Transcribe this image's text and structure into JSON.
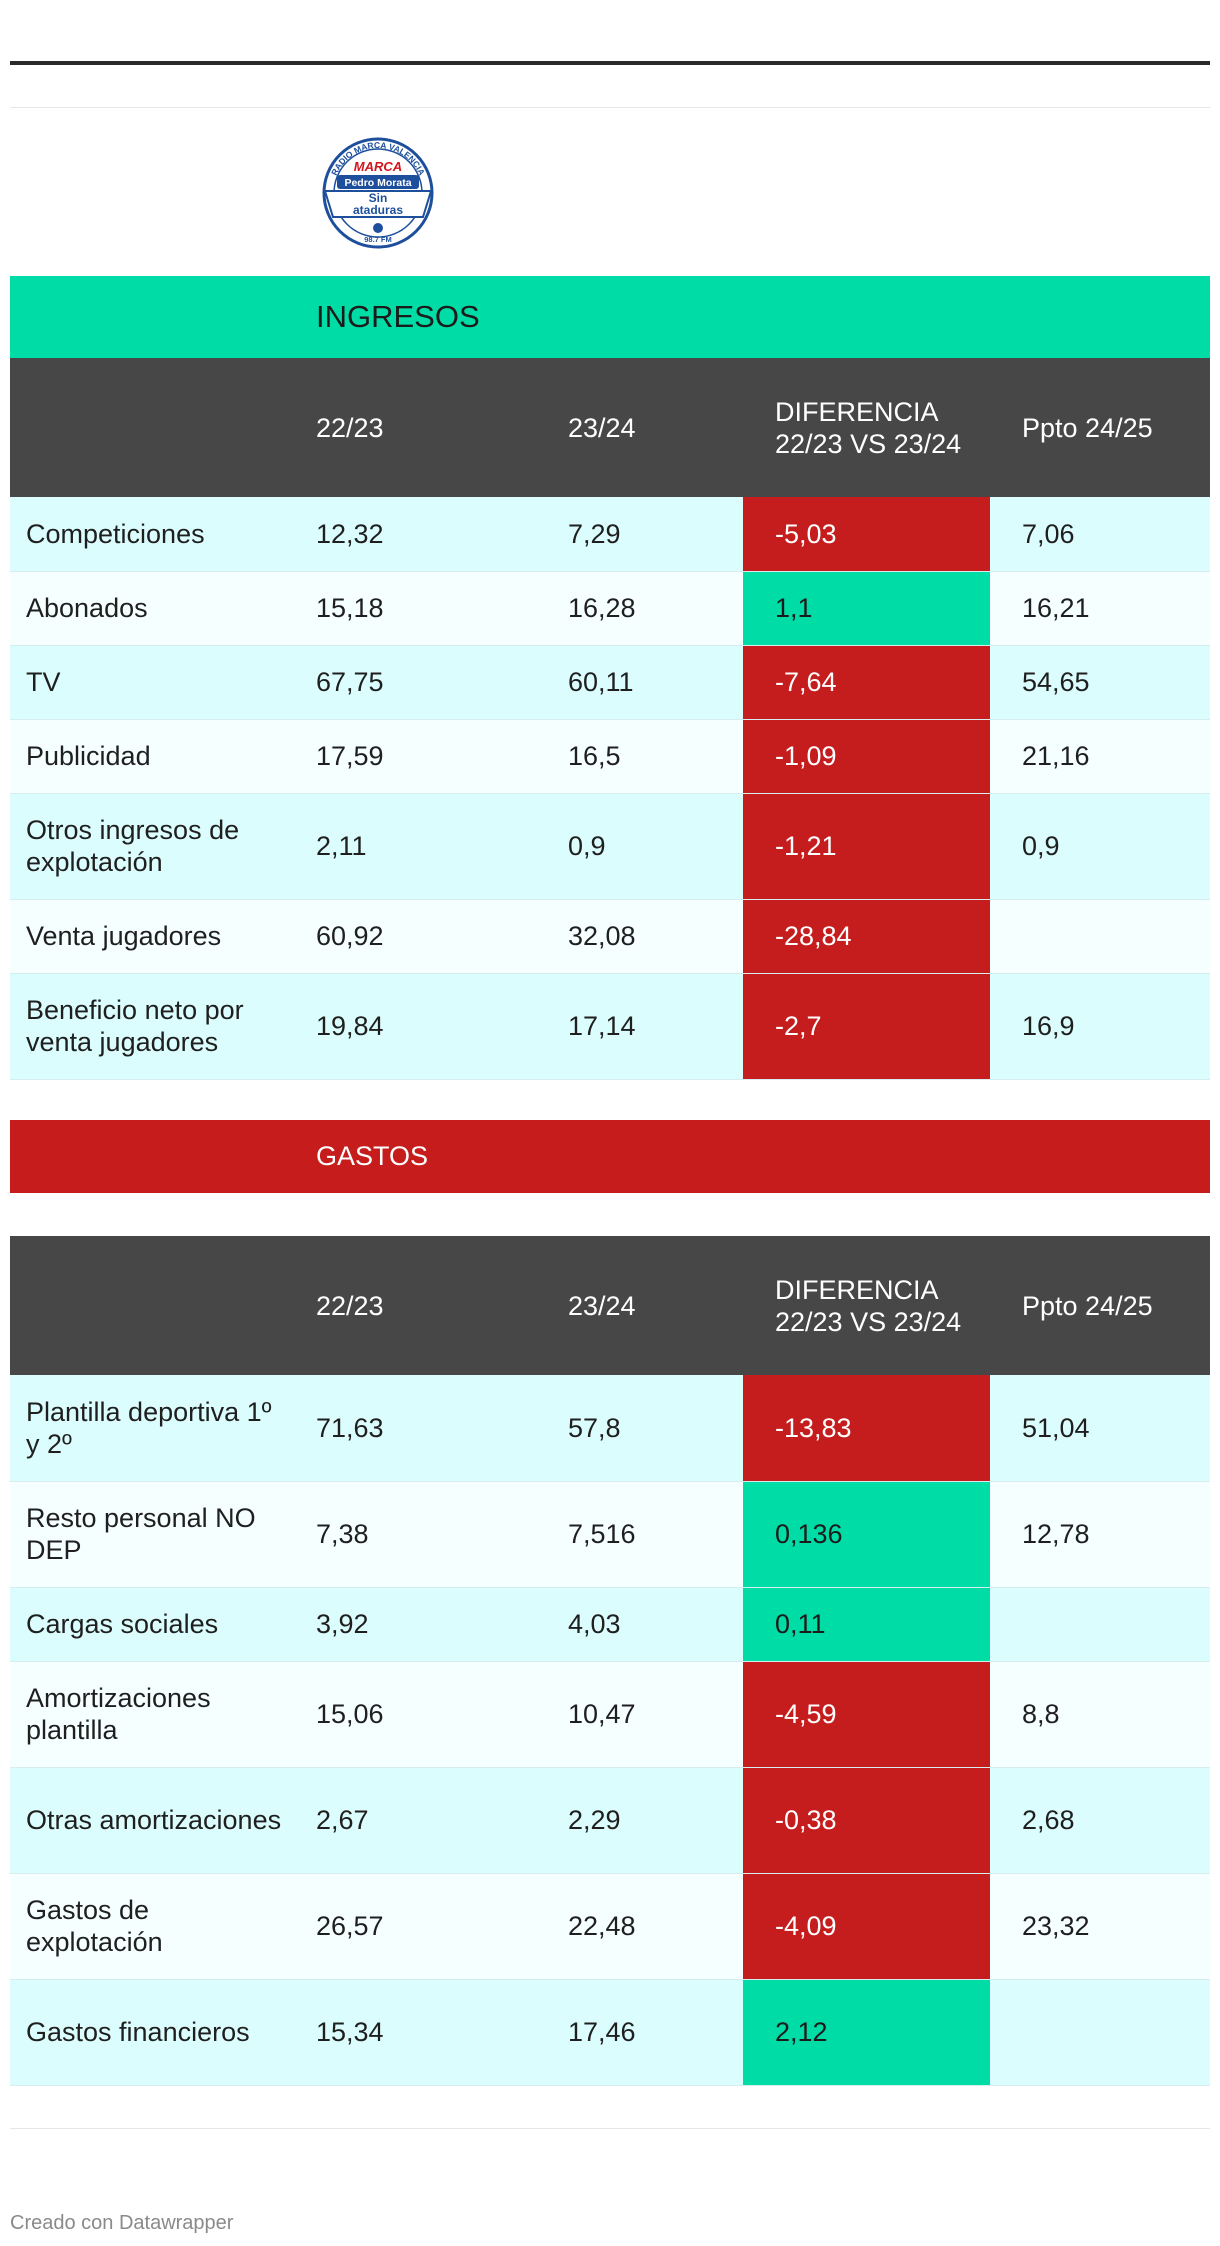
{
  "logo": {
    "ring_text": "RADIO MARCA VALENCIA",
    "brand": "MARCA",
    "name": "Pedro Morata",
    "show_line1": "Sin",
    "show_line2": "ataduras",
    "frequency": "98.7 FM"
  },
  "colors": {
    "green": "#00dca6",
    "red": "#c51d1d",
    "header": "#474747"
  },
  "ingresos": {
    "title": "INGRESOS",
    "headers": [
      "",
      "22/23",
      "23/24",
      "DIFERENCIA 22/23 VS 23/24",
      "Ppto 24/25"
    ],
    "rows": [
      {
        "label": "Competiciones",
        "v2223": "12,32",
        "v2324": "7,29",
        "diff": "-5,03",
        "ppto": "7,06",
        "sign": "neg"
      },
      {
        "label": "Abonados",
        "v2223": "15,18",
        "v2324": "16,28",
        "diff": "1,1",
        "ppto": "16,21",
        "sign": "pos"
      },
      {
        "label": "TV",
        "v2223": "67,75",
        "v2324": "60,11",
        "diff": "-7,64",
        "ppto": "54,65",
        "sign": "neg"
      },
      {
        "label": "Publicidad",
        "v2223": "17,59",
        "v2324": "16,5",
        "diff": "-1,09",
        "ppto": "21,16",
        "sign": "neg"
      },
      {
        "label": "Otros ingresos de explotación",
        "v2223": "2,11",
        "v2324": "0,9",
        "diff": "-1,21",
        "ppto": "0,9",
        "sign": "neg"
      },
      {
        "label": "Venta jugadores",
        "v2223": "60,92",
        "v2324": "32,08",
        "diff": "-28,84",
        "ppto": "",
        "sign": "neg"
      },
      {
        "label": "Beneficio neto por venta jugadores",
        "v2223": "19,84",
        "v2324": "17,14",
        "diff": "-2,7",
        "ppto": "16,9",
        "sign": "neg"
      }
    ]
  },
  "gastos": {
    "title": "GASTOS",
    "headers": [
      "",
      "22/23",
      "23/24",
      "DIFERENCIA 22/23 VS 23/24",
      "Ppto 24/25"
    ],
    "rows": [
      {
        "label": "Plantilla deportiva 1º y 2º",
        "v2223": "71,63",
        "v2324": "57,8",
        "diff": "-13,83",
        "ppto": "51,04",
        "sign": "neg"
      },
      {
        "label": "Resto personal NO DEP",
        "v2223": "7,38",
        "v2324": "7,516",
        "diff": "0,136",
        "ppto": "12,78",
        "sign": "pos"
      },
      {
        "label": "Cargas sociales",
        "v2223": "3,92",
        "v2324": "4,03",
        "diff": "0,11",
        "ppto": "",
        "sign": "pos"
      },
      {
        "label": "Amortizaciones plantilla",
        "v2223": "15,06",
        "v2324": "10,47",
        "diff": "-4,59",
        "ppto": "8,8",
        "sign": "neg"
      },
      {
        "label": "Otras amortizaciones",
        "v2223": "2,67",
        "v2324": "2,29",
        "diff": "-0,38",
        "ppto": "2,68",
        "sign": "neg"
      },
      {
        "label": "Gastos de explotación",
        "v2223": "26,57",
        "v2324": "22,48",
        "diff": "-4,09",
        "ppto": "23,32",
        "sign": "neg"
      },
      {
        "label": "Gastos financieros",
        "v2223": "15,34",
        "v2324": "17,46",
        "diff": "2,12",
        "ppto": "",
        "sign": "pos"
      }
    ]
  },
  "footer": {
    "credit": "Creado con Datawrapper"
  }
}
